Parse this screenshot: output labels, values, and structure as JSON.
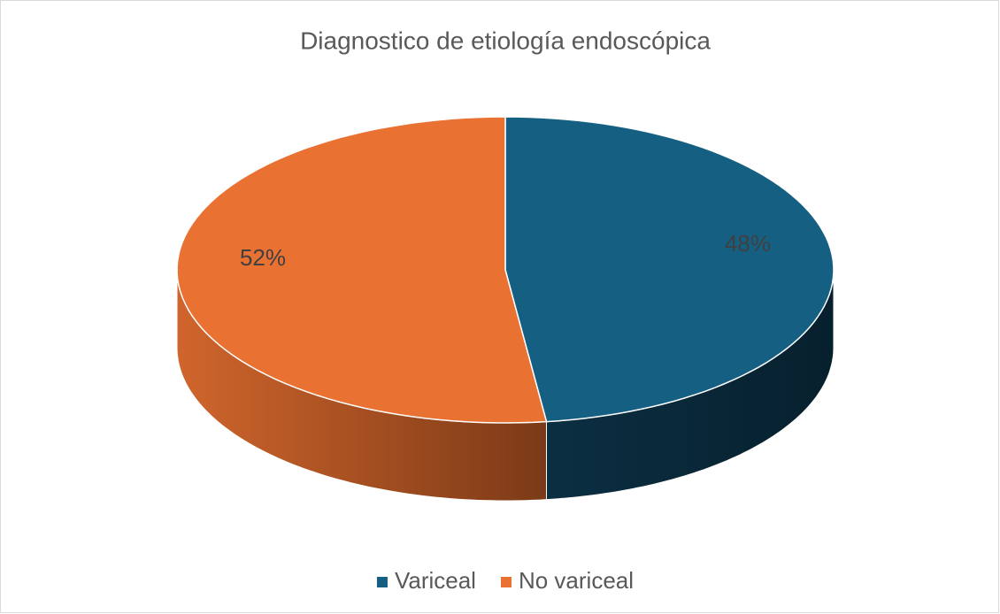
{
  "chart_data": {
    "type": "pie",
    "title": "Diagnostico de etiología endoscópica",
    "categories": [
      "Variceal",
      "No variceal"
    ],
    "values": [
      48,
      52
    ],
    "value_labels": [
      "48%",
      "52%"
    ],
    "colors": [
      "#156082",
      "#e97132"
    ],
    "legend": "bottom"
  }
}
